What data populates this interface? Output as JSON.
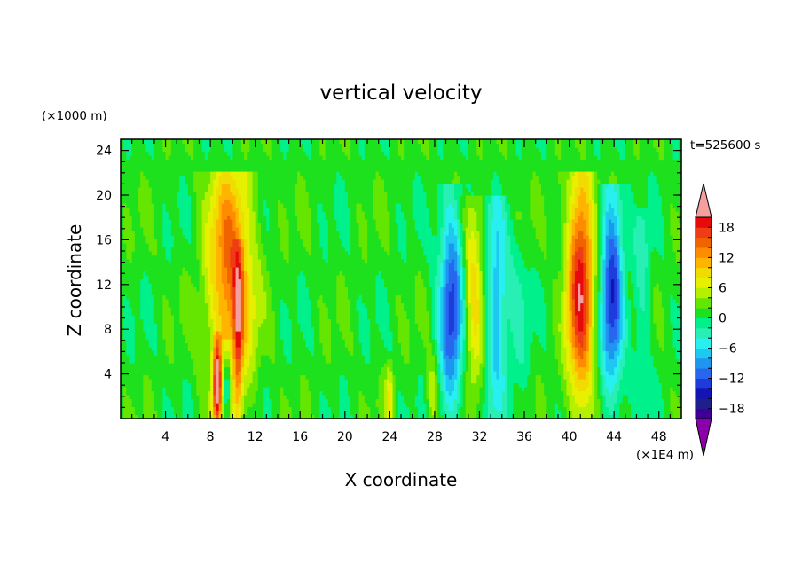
{
  "chart_data": {
    "type": "heatmap",
    "title": "vertical velocity",
    "xlabel": "X coordinate",
    "ylabel": "Z coordinate",
    "x_unit": "(×1E4 m)",
    "y_unit": "(×1000 m)",
    "time_label": "t=525600 s",
    "xlim": [
      0,
      50
    ],
    "ylim": [
      0,
      25
    ],
    "x_ticks": [
      4,
      8,
      12,
      16,
      20,
      24,
      28,
      32,
      36,
      40,
      44,
      48
    ],
    "y_ticks": [
      4,
      8,
      12,
      16,
      20,
      24
    ],
    "colorbar": {
      "levels": [
        -20,
        -18,
        -16,
        -14,
        -12,
        -10,
        -8,
        -6,
        -4,
        -2,
        0,
        2,
        4,
        6,
        8,
        10,
        12,
        14,
        16,
        18,
        20
      ],
      "labels": [
        -18,
        -12,
        -6,
        0,
        6,
        12,
        18
      ],
      "colors": [
        "#3c0096",
        "#1e1e8c",
        "#1414b4",
        "#1e3cdc",
        "#2866f0",
        "#1e96f0",
        "#1ec8f0",
        "#28f0f0",
        "#28f0b4",
        "#00f08c",
        "#1ee11e",
        "#64e600",
        "#b4f000",
        "#e6f000",
        "#f0dc00",
        "#ffb400",
        "#ff8c00",
        "#f06400",
        "#f03c14",
        "#e60a0a"
      ],
      "over_color": "#f5a0a0",
      "under_color": "#8c00aa"
    },
    "features": [
      {
        "x": 9.8,
        "width": 2.0,
        "amplitude": 14,
        "z_top": 22,
        "z_peak": 13
      },
      {
        "x": 8.6,
        "width": 0.35,
        "amplitude": 18,
        "z_top": 8,
        "z_peak": 3
      },
      {
        "x": 9.5,
        "width": 0.35,
        "amplitude": -10,
        "z_top": 7,
        "z_peak": 3
      },
      {
        "x": 10.5,
        "width": 0.4,
        "amplitude": 10,
        "z_top": 16,
        "z_peak": 8
      },
      {
        "x": 29.5,
        "width": 1.1,
        "amplitude": -13,
        "z_top": 21,
        "z_peak": 10
      },
      {
        "x": 31.5,
        "width": 0.9,
        "amplitude": 8,
        "z_top": 20,
        "z_peak": 11
      },
      {
        "x": 33.5,
        "width": 1.0,
        "amplitude": -9,
        "z_top": 20,
        "z_peak": 10
      },
      {
        "x": 35.5,
        "width": 0.9,
        "amplitude": -3,
        "z_top": 18,
        "z_peak": 10
      },
      {
        "x": 41.0,
        "width": 1.2,
        "amplitude": 18,
        "z_top": 22,
        "z_peak": 12
      },
      {
        "x": 43.8,
        "width": 1.0,
        "amplitude": -14,
        "z_top": 21,
        "z_peak": 12
      },
      {
        "x": 46.5,
        "width": 0.8,
        "amplitude": -4,
        "z_top": 19,
        "z_peak": 11
      },
      {
        "x": 24.0,
        "width": 0.4,
        "amplitude": 7,
        "z_top": 6,
        "z_peak": 2
      },
      {
        "x": 27.8,
        "width": 0.5,
        "amplitude": 5,
        "z_top": 7,
        "z_peak": 2
      }
    ],
    "grid": false,
    "legend": "colorbar right"
  }
}
